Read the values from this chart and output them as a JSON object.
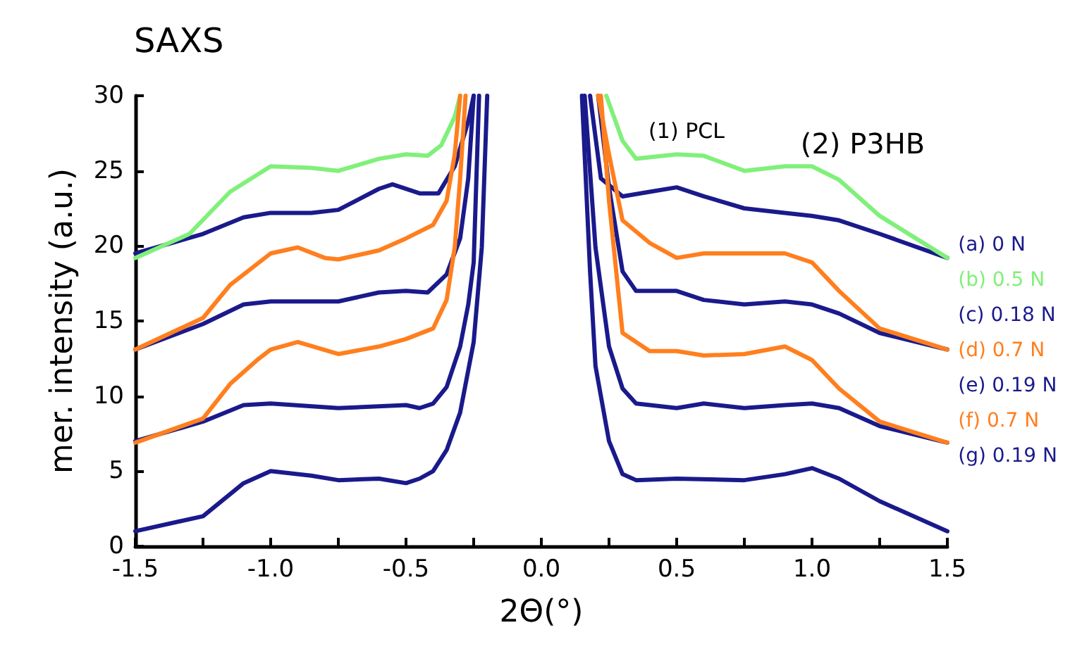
{
  "chart_data": {
    "type": "line",
    "title": "SAXS",
    "xlabel": "2Θ(°)",
    "ylabel": "mer. intensity (a.u.)",
    "xlim": [
      -1.5,
      1.5
    ],
    "xticks": [
      {
        "value": -1.5,
        "label": "-1.5"
      },
      {
        "value": -1.25,
        "label": null
      },
      {
        "value": -1.0,
        "label": "-1.0"
      },
      {
        "value": -0.75,
        "label": null
      },
      {
        "value": -0.5,
        "label": "-0.5"
      },
      {
        "value": -0.25,
        "label": null
      },
      {
        "value": 0,
        "label": "0.0"
      },
      {
        "value": 0.25,
        "label": null
      },
      {
        "value": 0.5,
        "label": "0.5"
      },
      {
        "value": 0.75,
        "label": null
      },
      {
        "value": 1.0,
        "label": "1.0"
      },
      {
        "value": 1.25,
        "label": null
      },
      {
        "value": 1.5,
        "label": "1.5"
      }
    ],
    "ylim": [
      0,
      30
    ],
    "yticks": [
      0,
      5,
      10,
      15,
      20,
      25,
      30
    ],
    "grid": false,
    "legend": "right",
    "marker": "none",
    "line_style": "solid",
    "annotations": [
      "(1) PCL",
      "(2) P3HB"
    ],
    "series": [
      {
        "name": "(a) 0 N",
        "color": "#1a1a8c",
        "x": [
          -1.5,
          -1.25,
          -1.1,
          -1.0,
          -0.85,
          -0.75,
          -0.6,
          -0.55,
          -0.45,
          -0.38,
          -0.32,
          -0.27,
          -0.25,
          0,
          0.18,
          0.22,
          0.3,
          0.4,
          0.5,
          0.6,
          0.75,
          0.9,
          1.0,
          1.1,
          1.25,
          1.5
        ],
        "values": [
          19.5,
          20.8,
          21.9,
          22.2,
          22.2,
          22.4,
          23.8,
          24.1,
          23.5,
          23.5,
          25.3,
          28.3,
          30,
          null,
          30,
          24.5,
          23.3,
          23.6,
          23.9,
          23.3,
          22.5,
          22.2,
          22,
          21.7,
          20.8,
          19.2
        ]
      },
      {
        "name": "(b) 0.5 N",
        "color": "#80f07a",
        "x": [
          -1.5,
          -1.3,
          -1.15,
          -1.0,
          -0.85,
          -0.75,
          -0.6,
          -0.5,
          -0.42,
          -0.37,
          -0.32,
          -0.3,
          0,
          0.24,
          0.3,
          0.35,
          0.5,
          0.6,
          0.75,
          0.9,
          1.0,
          1.1,
          1.25,
          1.5
        ],
        "values": [
          19.2,
          20.8,
          23.6,
          25.3,
          25.2,
          25.0,
          25.8,
          26.1,
          26.0,
          26.7,
          28.6,
          30,
          null,
          30,
          27,
          25.8,
          26.1,
          26.0,
          25.0,
          25.3,
          25.3,
          24.4,
          22,
          19.2
        ]
      },
      {
        "name": "(c) 0.18 N",
        "color": "#1a1a8c",
        "x": [
          -1.5,
          -1.25,
          -1.1,
          -1.0,
          -0.75,
          -0.6,
          -0.5,
          -0.42,
          -0.35,
          -0.3,
          -0.27,
          -0.25,
          0,
          0.21,
          0.25,
          0.3,
          0.35,
          0.5,
          0.6,
          0.75,
          0.9,
          1.0,
          1.1,
          1.25,
          1.5
        ],
        "values": [
          13.1,
          14.8,
          16.1,
          16.3,
          16.3,
          16.9,
          17,
          16.9,
          18.1,
          20.5,
          24.5,
          30,
          null,
          30,
          23.9,
          18.3,
          17,
          17,
          16.4,
          16.1,
          16.3,
          16.1,
          15.5,
          14.2,
          13.1
        ]
      },
      {
        "name": "(d) 0.7 N",
        "color": "#ff7f1e",
        "x": [
          -1.5,
          -1.25,
          -1.15,
          -1.0,
          -0.9,
          -0.8,
          -0.75,
          -0.6,
          -0.5,
          -0.4,
          -0.35,
          -0.32,
          -0.3,
          0,
          0.21,
          0.25,
          0.3,
          0.4,
          0.5,
          0.6,
          0.75,
          0.9,
          1.0,
          1.1,
          1.25,
          1.5
        ],
        "values": [
          13.1,
          15.2,
          17.4,
          19.5,
          19.9,
          19.2,
          19.1,
          19.7,
          20.5,
          21.4,
          23,
          26.1,
          30,
          null,
          30,
          26.1,
          21.7,
          20.2,
          19.2,
          19.5,
          19.5,
          19.5,
          18.9,
          17,
          14.5,
          13.1
        ]
      },
      {
        "name": "(e) 0.19 N",
        "color": "#1a1a8c",
        "x": [
          -1.5,
          -1.25,
          -1.1,
          -1.0,
          -0.75,
          -0.5,
          -0.45,
          -0.4,
          -0.35,
          -0.3,
          -0.27,
          -0.25,
          -0.23,
          0,
          0.16,
          0.2,
          0.25,
          0.3,
          0.35,
          0.5,
          0.6,
          0.75,
          0.9,
          1.0,
          1.1,
          1.25,
          1.5
        ],
        "values": [
          7,
          8.3,
          9.4,
          9.5,
          9.2,
          9.4,
          9.2,
          9.5,
          10.6,
          13.3,
          16.1,
          18.9,
          30,
          null,
          30,
          19.9,
          13.3,
          10.5,
          9.5,
          9.2,
          9.5,
          9.2,
          9.4,
          9.5,
          9.2,
          8,
          6.9
        ]
      },
      {
        "name": "(f) 0.7 N",
        "color": "#ff7f1e",
        "x": [
          -1.5,
          -1.25,
          -1.15,
          -1.05,
          -1.0,
          -0.9,
          -0.75,
          -0.6,
          -0.5,
          -0.4,
          -0.35,
          -0.32,
          -0.3,
          -0.28,
          0,
          0.22,
          0.25,
          0.28,
          0.3,
          0.4,
          0.5,
          0.6,
          0.75,
          0.9,
          1.0,
          1.1,
          1.25,
          1.5
        ],
        "values": [
          6.9,
          8.5,
          10.8,
          12.4,
          13.1,
          13.6,
          12.8,
          13.3,
          13.8,
          14.5,
          16.4,
          19.9,
          24.5,
          30,
          null,
          30,
          23,
          17.7,
          14.2,
          13,
          13,
          12.7,
          12.8,
          13.3,
          12.4,
          10.5,
          8.3,
          6.9
        ]
      },
      {
        "name": "(g) 0.19 N",
        "color": "#1a1a8c",
        "x": [
          -1.5,
          -1.25,
          -1.1,
          -1.0,
          -0.85,
          -0.75,
          -0.6,
          -0.5,
          -0.45,
          -0.4,
          -0.35,
          -0.3,
          -0.25,
          -0.22,
          -0.2,
          0,
          0.15,
          0.18,
          0.2,
          0.25,
          0.3,
          0.35,
          0.5,
          0.75,
          0.9,
          1.0,
          1.1,
          1.25,
          1.5
        ],
        "values": [
          1,
          2,
          4.2,
          5,
          4.7,
          4.4,
          4.5,
          4.2,
          4.5,
          5,
          6.4,
          8.9,
          13.6,
          19.9,
          30,
          null,
          30,
          18.3,
          12,
          7,
          4.8,
          4.4,
          4.5,
          4.4,
          4.8,
          5.2,
          4.5,
          3,
          1
        ]
      }
    ]
  }
}
